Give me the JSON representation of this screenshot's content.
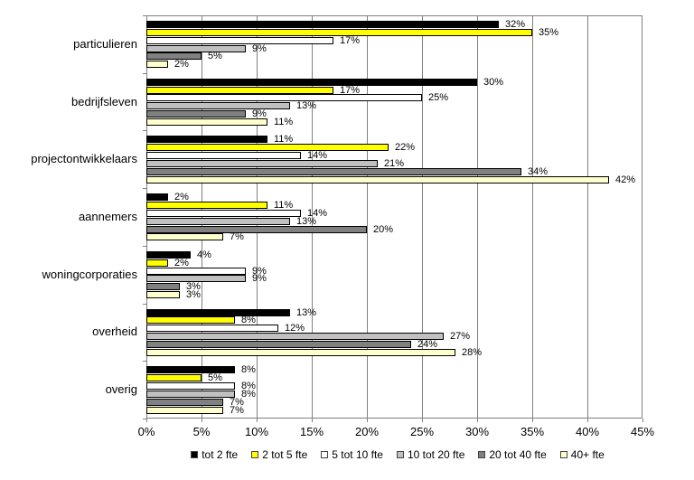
{
  "chart_data": {
    "type": "bar",
    "orientation": "horizontal",
    "title": "",
    "categories": [
      "particulieren",
      "bedrijfsleven",
      "projectontwikkelaars",
      "aannemers",
      "woningcorporaties",
      "overheid",
      "overig"
    ],
    "series": [
      {
        "name": "tot 2 fte",
        "color": "#000000",
        "values": [
          32,
          30,
          11,
          2,
          4,
          13,
          8
        ]
      },
      {
        "name": "2 tot 5 fte",
        "color": "#FFFF00",
        "values": [
          35,
          17,
          22,
          11,
          2,
          8,
          5
        ]
      },
      {
        "name": "5 tot 10 fte",
        "color": "#FFFFFF",
        "values": [
          17,
          25,
          14,
          14,
          9,
          12,
          8
        ]
      },
      {
        "name": "10 tot 20 fte",
        "color": "#C0C0C0",
        "values": [
          9,
          13,
          21,
          13,
          9,
          27,
          8
        ]
      },
      {
        "name": "20 tot 40 fte",
        "color": "#808080",
        "values": [
          5,
          9,
          34,
          20,
          3,
          24,
          7
        ]
      },
      {
        "name": "40+ fte",
        "color": "#FFFFCC",
        "values": [
          2,
          11,
          42,
          7,
          3,
          28,
          7
        ]
      }
    ],
    "data_labels": true,
    "value_suffix": "%",
    "xlim": [
      0,
      45
    ],
    "x_tick_step": 5,
    "x_ticks": [
      "0%",
      "5%",
      "10%",
      "15%",
      "20%",
      "25%",
      "30%",
      "35%",
      "40%",
      "45%"
    ],
    "grid": true,
    "gridline_color": "#808080",
    "plot_border_color": "#808080",
    "bar_border_color": "#000000",
    "legend_position": "bottom"
  }
}
